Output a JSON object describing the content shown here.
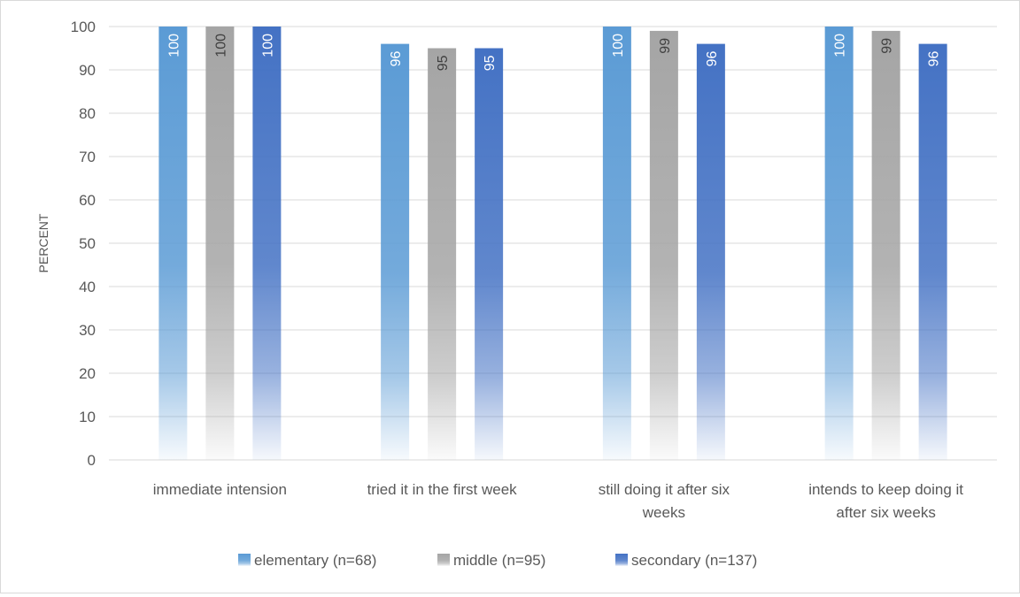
{
  "chart_data": {
    "type": "bar",
    "ylabel": "PERCENT",
    "ylim": [
      0,
      100
    ],
    "yticks": [
      0,
      10,
      20,
      30,
      40,
      50,
      60,
      70,
      80,
      90,
      100
    ],
    "grid": true,
    "legend_position": "bottom",
    "categories": [
      [
        "immediate intension"
      ],
      [
        "tried it in the first week"
      ],
      [
        "still doing it after six",
        "weeks"
      ],
      [
        "intends to keep doing it",
        "after six weeks"
      ]
    ],
    "series": [
      {
        "name": "elementary (n=68)",
        "color": "#5b9bd5",
        "values": [
          100,
          96,
          100,
          100
        ]
      },
      {
        "name": "middle (n=95)",
        "color": "#a5a5a5",
        "values": [
          100,
          95,
          99,
          99
        ]
      },
      {
        "name": "secondary (n=137)",
        "color": "#4472c4",
        "values": [
          100,
          95,
          96,
          96
        ]
      }
    ]
  }
}
